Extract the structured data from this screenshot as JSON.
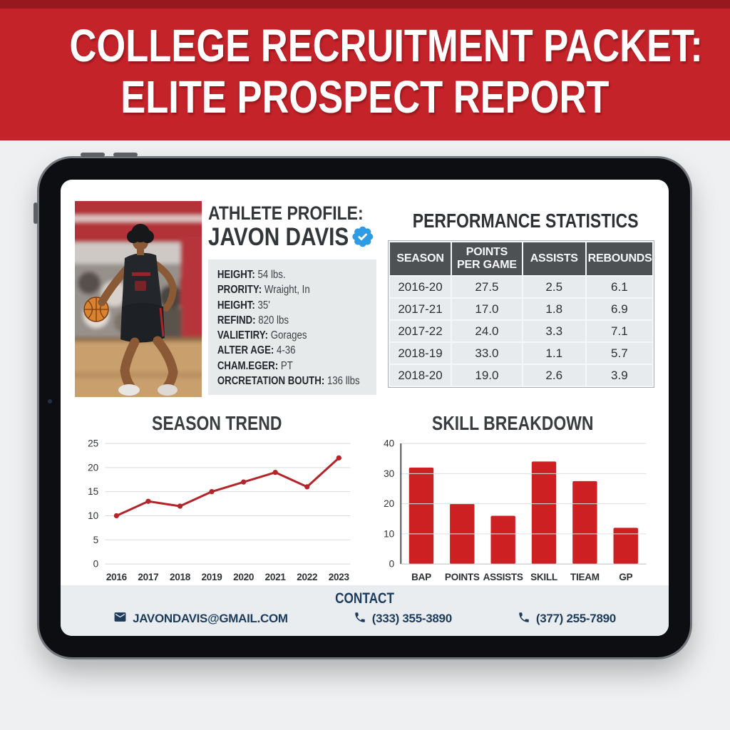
{
  "banner": {
    "line1": "COLLEGE RECRUITMENT PACKET:",
    "line2": "ELITE PROSPECT REPORT"
  },
  "profile": {
    "section_title": "ATHLETE PROFILE:",
    "name": "JAVON DAVIS",
    "verified_icon": "verified-badge",
    "stats": [
      {
        "label": "HEIGHT:",
        "value": "54 lbs."
      },
      {
        "label": "PRORITY:",
        "value": "Wraight, In"
      },
      {
        "label": "HEIGHT:",
        "value": "35'"
      },
      {
        "label": "REFIND:",
        "value": "820 lbs"
      },
      {
        "label": "VALIETIRY:",
        "value": "Gorages"
      },
      {
        "label": "ALTER AGE:",
        "value": "4-36"
      },
      {
        "label": "CHAM.EGER:",
        "value": "PT"
      },
      {
        "label": "ORCRETATION BOUTH:",
        "value": "136 llbs"
      }
    ]
  },
  "performance": {
    "title": "PERFORMANCE STATISTICS",
    "columns": [
      "SEASON",
      "POINTS PER GAME",
      "ASSISTS",
      "REBOUNDS"
    ],
    "rows": [
      [
        "2016-20",
        "27.5",
        "2.5",
        "6.1"
      ],
      [
        "2017-21",
        "17.0",
        "1.8",
        "6.9"
      ],
      [
        "2017-22",
        "24.0",
        "3.3",
        "7.1"
      ],
      [
        "2018-19",
        "33.0",
        "1.1",
        "5.7"
      ],
      [
        "2018-20",
        "19.0",
        "2.6",
        "3.9"
      ]
    ]
  },
  "chart_data": [
    {
      "type": "line",
      "title": "SEASON TREND",
      "x": [
        "2016",
        "2017",
        "2018",
        "2019",
        "2020",
        "2021",
        "2022",
        "2023"
      ],
      "values": [
        10,
        13,
        12,
        15,
        17,
        19,
        16,
        22
      ],
      "ylim": [
        0,
        25
      ],
      "yticks": [
        0,
        5,
        10,
        15,
        20,
        25
      ],
      "grid": true,
      "legend": "none",
      "color": "#b2252a"
    },
    {
      "type": "bar",
      "title": "SKILL BREAKDOWN",
      "categories": [
        "BAP",
        "POINTS",
        "ASSISTS",
        "SKILL",
        "TIEAM",
        "GP"
      ],
      "values": [
        32,
        20,
        16,
        34,
        27.5,
        12
      ],
      "ylim": [
        0,
        40
      ],
      "yticks": [
        0,
        10,
        20,
        30,
        40
      ],
      "grid": true,
      "legend": "none",
      "color": "#cd2023"
    }
  ],
  "contact": {
    "title": "CONTACT",
    "email": "JAVONDAVIS@GMAIL.COM",
    "email_icon": "envelope",
    "phone1": "(333) 355-3890",
    "phone2": "(377) 255-7890",
    "phone_icon": "handset"
  },
  "colors": {
    "banner_red": "#c4232a",
    "banner_red_dark": "#97181e",
    "chart_bar_red": "#cd2023",
    "chart_line_red": "#b2252a",
    "navy": "#1d3c5c",
    "verified_blue": "#2e9be5",
    "table_header_gray": "#4e5154",
    "panel_gray": "#e7eaeb"
  }
}
